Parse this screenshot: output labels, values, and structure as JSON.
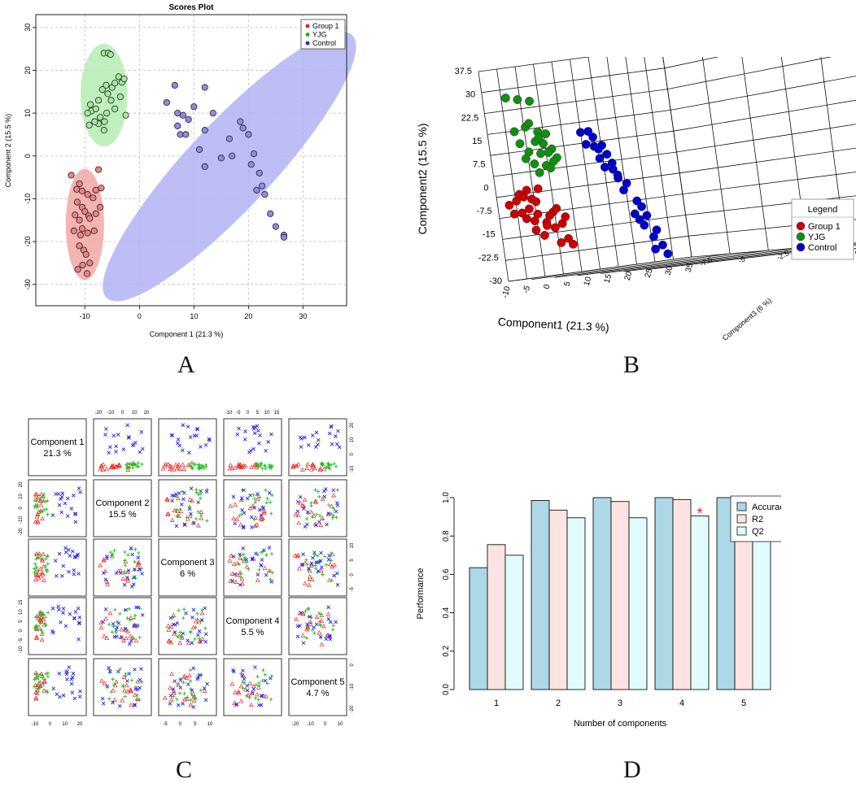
{
  "figure": {
    "panel_labels": [
      "A",
      "B",
      "C",
      "D"
    ]
  },
  "chart_data": [
    {
      "id": "A",
      "type": "scatter",
      "title": "Scores Plot",
      "xlabel": "Component 1 (21.3 %)",
      "ylabel": "Component 2 (15.5 %)",
      "xlim": [
        -19,
        38
      ],
      "ylim": [
        -35,
        33
      ],
      "xticks": [
        -10,
        0,
        10,
        20,
        30
      ],
      "yticks": [
        -30,
        -20,
        -10,
        0,
        10,
        20,
        30
      ],
      "grid": true,
      "legend": "top-right",
      "series": [
        {
          "name": "Group 1",
          "color": "#dd2222",
          "fill": "#e98383",
          "x": [
            -12.5,
            -11,
            -11.5,
            -10.5,
            -9.5,
            -8.5,
            -8,
            -7,
            -10.5,
            -11.8,
            -10,
            -9.3,
            -11,
            -8,
            -7.2,
            -10.5,
            -12,
            -10.8,
            -9.5,
            -8.3,
            -9.1,
            -11,
            -10.2,
            -9.8,
            -10.4,
            -11.3,
            -9.6,
            -9.1,
            -7.5,
            -11.4
          ],
          "y": [
            -4.5,
            -6.5,
            -7.8,
            -8.2,
            -9,
            -9.8,
            -8,
            -7.5,
            -12,
            -13.8,
            -13,
            -14,
            -15,
            -13.5,
            -12,
            -17,
            -17.5,
            -18.5,
            -18,
            -17.5,
            -14.6,
            -21,
            -22,
            -23,
            -25.5,
            -26.5,
            -27.5,
            -25,
            -3.2,
            -10.8
          ]
        },
        {
          "name": "YJG",
          "color": "#22aa22",
          "fill": "#a6e7a0",
          "x": [
            -6.5,
            -5.7,
            -5.3,
            -6.1,
            -5,
            -4.5,
            -3.8,
            -3.2,
            -2.8,
            -6.8,
            -7.5,
            -9,
            -8.8,
            -9.5,
            -8,
            -7.2,
            -6,
            -4.5,
            -2.5,
            -5.2,
            -6.4,
            -7.5,
            -8.2,
            -9.2,
            -6.5,
            -3.5,
            -5.8
          ],
          "y": [
            24,
            24,
            23.7,
            16.5,
            16,
            17,
            18.5,
            17.2,
            18,
            15.5,
            13,
            12,
            10.5,
            10,
            11,
            9,
            10,
            11,
            9.5,
            13,
            8,
            7.5,
            8,
            7.2,
            6,
            13.8,
            14.5
          ]
        },
        {
          "name": "Control",
          "color": "#2222cc",
          "fill": "#8c8ce0",
          "x": [
            6.5,
            5,
            7,
            8,
            9,
            10,
            12,
            12,
            13.5,
            11,
            7,
            7.5,
            8.5,
            15,
            17,
            16.5,
            18.5,
            19,
            20,
            21,
            20.5,
            22,
            21.5,
            22.5,
            23,
            24,
            25,
            26.5,
            26.5,
            12
          ],
          "y": [
            16.5,
            12.5,
            10,
            9.5,
            8.5,
            11.5,
            16,
            6,
            10,
            1.5,
            7,
            5,
            5,
            -0.5,
            0,
            4,
            8,
            6.5,
            5,
            0.5,
            -2,
            -4,
            -8,
            -7,
            -9,
            -13.5,
            -16.5,
            -18.5,
            -19,
            -2.5
          ]
        }
      ],
      "ellipses": [
        {
          "name": "Group 1",
          "fill": "#f2a7a5",
          "cx": -10,
          "cy": -16,
          "rx": 3.5,
          "ry": 13,
          "angle": 0
        },
        {
          "name": "YJG",
          "fill": "#b5edb2",
          "cx": -6.5,
          "cy": 14.2,
          "rx": 4.3,
          "ry": 12,
          "angle": 0
        },
        {
          "name": "Control",
          "fill": "#b3b3f4",
          "cx": 16.5,
          "cy": -2.5,
          "rx": 33,
          "ry": 10,
          "angle": -47
        }
      ]
    },
    {
      "id": "B",
      "type": "scatter",
      "title": "",
      "xlabel": "Component1 (21.3 %)",
      "ylabel": "Component2 (15.5 %)",
      "zlabel": "Component3 (6 %)",
      "xticks": [
        "-10",
        "-5",
        "0",
        "5",
        "10",
        "15",
        "20",
        "25",
        "30",
        "35"
      ],
      "yticks": [
        "37.5",
        "30",
        "22.5",
        "15",
        "7.5",
        "0",
        "-7.5",
        "-15",
        "-22.5",
        "-30"
      ],
      "zticks": [
        "-7.5",
        "-5",
        "-2.5",
        "0",
        "2.5",
        "5",
        "7.5"
      ],
      "legend": {
        "title": "Legend",
        "position": "right",
        "entries": [
          "Group 1",
          "YJG",
          "Control"
        ]
      },
      "series": [
        {
          "name": "Group 1",
          "color": "#cc0000",
          "x": [
            -9,
            -7,
            -6,
            -5,
            -4,
            -3,
            -2,
            -1,
            -8,
            -6,
            -5,
            -4,
            -3,
            -2,
            0,
            1,
            2,
            3,
            5,
            -3,
            -1,
            0,
            2,
            4,
            3,
            5,
            6
          ],
          "y": [
            -6,
            -5,
            -3,
            -4,
            -2,
            -5,
            -6,
            -2,
            -9,
            -9,
            -11,
            -8,
            -12,
            -10,
            -13,
            -11,
            -10,
            -9,
            -12,
            -15,
            -17,
            -14,
            -15,
            -14,
            -20,
            -19,
            -21
          ]
        },
        {
          "name": "YJG",
          "color": "#109010",
          "x": [
            -6,
            -3,
            0,
            -2,
            -5,
            -1,
            1,
            3,
            -4,
            0,
            2,
            4,
            -2,
            1,
            3,
            5,
            -1,
            2,
            4,
            0,
            3,
            -3,
            1
          ],
          "y": [
            28,
            27,
            26,
            18,
            17,
            19,
            16,
            15,
            13,
            13,
            12,
            10,
            10,
            9,
            9,
            7,
            6,
            5,
            6,
            3,
            4,
            8,
            14
          ]
        },
        {
          "name": "Control",
          "color": "#0000cc",
          "x": [
            12,
            14,
            15,
            13,
            15,
            16,
            17,
            16,
            18,
            19,
            17,
            19,
            20,
            20,
            21,
            22,
            24,
            23,
            25,
            24,
            26,
            27,
            28,
            25,
            27,
            29,
            30
          ],
          "y": [
            14,
            14,
            12,
            10,
            9,
            8,
            9,
            5,
            6,
            3,
            2,
            1,
            -1,
            -2,
            -6,
            -4,
            -10,
            -14,
            -12,
            -16,
            -15,
            -22,
            -20,
            -18,
            -26,
            -25,
            -28
          ]
        }
      ]
    },
    {
      "id": "C",
      "type": "scatter",
      "title": "",
      "diagonal_labels": [
        {
          "name": "Component 1",
          "pct": "21.3 %"
        },
        {
          "name": "Component 2",
          "pct": "15.5 %"
        },
        {
          "name": "Component 3",
          "pct": "6 %"
        },
        {
          "name": "Component 4",
          "pct": "5.5 %"
        },
        {
          "name": "Component 5",
          "pct": "4.7 %"
        }
      ],
      "top_axis_ticks": [
        {
          "col": 1,
          "labels": [
            "-20",
            "-10",
            "0",
            "10",
            "20"
          ]
        },
        {
          "col": 3,
          "labels": [
            "-10",
            "-5",
            "0",
            "5",
            "10",
            "15"
          ]
        }
      ],
      "bottom_axis_ticks": [
        {
          "col": 0,
          "labels": [
            "-10",
            "0",
            "10",
            "20"
          ]
        },
        {
          "col": 2,
          "labels": [
            "-5",
            "0",
            "5",
            "10"
          ]
        },
        {
          "col": 4,
          "labels": [
            "-20",
            "-10",
            "0",
            "10"
          ]
        }
      ],
      "left_axis_ticks": [
        {
          "row": 1,
          "labels": [
            "20",
            "10",
            "0",
            "-10",
            "-20"
          ]
        },
        {
          "row": 3,
          "labels": [
            "15",
            "10",
            "5",
            "0",
            "-5",
            "-10"
          ]
        }
      ],
      "right_axis_ticks": [
        {
          "row": 0,
          "labels": [
            "20",
            "10",
            "0",
            "-10"
          ]
        },
        {
          "row": 2,
          "labels": [
            "10",
            "5",
            "0",
            "-5"
          ]
        },
        {
          "row": 4,
          "labels": [
            "0",
            "-10",
            "-20"
          ]
        }
      ],
      "groups": [
        {
          "name": "Group 1",
          "color": "#ee2222",
          "marker": "triangle"
        },
        {
          "name": "YJG",
          "color": "#22bb22",
          "marker": "plus"
        },
        {
          "name": "Control",
          "color": "#2222ee",
          "marker": "cross"
        }
      ]
    },
    {
      "id": "D",
      "type": "bar",
      "title": "",
      "xlabel": "Number of components",
      "ylabel": "Performance",
      "categories": [
        "1",
        "2",
        "3",
        "4",
        "5"
      ],
      "ylim": [
        0,
        1.0
      ],
      "yticks": [
        "0.0",
        "0.2",
        "0.4",
        "0.6",
        "0.8",
        "1.0"
      ],
      "series": [
        {
          "name": "Accuracy",
          "color": "#add8e6",
          "values": [
            0.635,
            0.985,
            1.0,
            1.0,
            1.0
          ]
        },
        {
          "name": "R2",
          "color": "#fde3e1",
          "values": [
            0.755,
            0.935,
            0.98,
            0.99,
            0.995
          ]
        },
        {
          "name": "Q2",
          "color": "#e2fbfc",
          "values": [
            0.7,
            0.895,
            0.895,
            0.905,
            0.905
          ]
        }
      ],
      "marker": {
        "category": "4",
        "series": "Q2",
        "symbol": "*",
        "color": "#dd2222"
      },
      "legend": "top-right"
    }
  ]
}
